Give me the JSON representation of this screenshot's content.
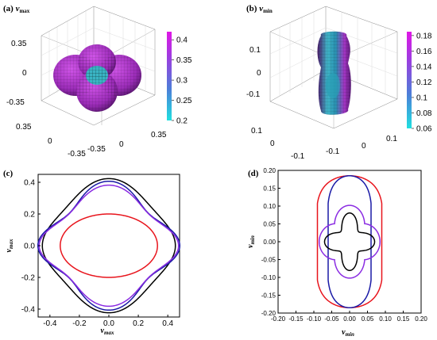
{
  "panels": {
    "a": {
      "label": "(a)",
      "var": "v",
      "sub": "max"
    },
    "b": {
      "label": "(b)",
      "var": "v",
      "sub": "min"
    },
    "c": {
      "label": "(c)"
    },
    "d": {
      "label": "(d)"
    }
  },
  "colors": {
    "black": "#000000",
    "blue": "#1a1aa6",
    "violet": "#8a2be2",
    "red": "#e8141c",
    "surfA": "#a338b8",
    "surfB": "#35c8d8"
  },
  "chart_data": [
    {
      "type": "3d-surface",
      "panel": "a",
      "title": "v max",
      "axis_ticks": {
        "vertical": [
          "0.35",
          "0",
          "-0.35"
        ],
        "front_left": [
          "0.35",
          "0",
          "-0.35"
        ],
        "front_right": [
          "-0.35",
          "0",
          "0.35"
        ]
      },
      "colorbar": {
        "ticks": [
          "0.4",
          "0.35",
          "0.3",
          "0.25",
          "0.2"
        ],
        "range": [
          0.2,
          0.42
        ],
        "colormap": "cyan-to-magenta"
      }
    },
    {
      "type": "3d-surface",
      "panel": "b",
      "title": "v min",
      "axis_ticks": {
        "vertical": [
          "0.1",
          "0",
          "-0.1"
        ],
        "front_left": [
          "0.1",
          "0",
          "-0.1"
        ],
        "front_right": [
          "-0.1",
          "0",
          "0.1"
        ]
      },
      "colorbar": {
        "ticks": [
          "0.18",
          "0.16",
          "0.14",
          "0.12",
          "0.1",
          "0.08",
          "0.06"
        ],
        "range": [
          0.06,
          0.185
        ],
        "colormap": "cyan-to-magenta"
      }
    },
    {
      "type": "line",
      "panel": "c",
      "xlabel": "v max",
      "ylabel": "v max",
      "xlim": [
        -0.48,
        0.48
      ],
      "ylim": [
        -0.45,
        0.45
      ],
      "xticks": [
        "-0.4",
        "-0.2",
        "0.0",
        "0.2",
        "0.4"
      ],
      "yticks": [
        "0.4",
        "0.2",
        "0.0",
        "-0.2",
        "-0.4"
      ],
      "series": [
        {
          "color": "#000000",
          "shape": {
            "rx": 0.43,
            "ry": 0.36,
            "a2": -0.12,
            "a4": 0.05
          }
        },
        {
          "color": "#1a1aa6",
          "shape": {
            "rx": 0.43,
            "ry": 0.33,
            "a2": -0.1,
            "a4": 0.12
          }
        },
        {
          "color": "#8a2be2",
          "shape": {
            "rx": 0.43,
            "ry": 0.31,
            "a2": -0.12,
            "a4": 0.1
          }
        },
        {
          "color": "#e8141c",
          "shape": {
            "rx": 0.33,
            "ry": 0.2,
            "a2": 0.0,
            "a4": 0.0
          }
        }
      ]
    },
    {
      "type": "line",
      "panel": "d",
      "xlabel": "v min",
      "ylabel": "v min",
      "xlim": [
        -0.2,
        0.2
      ],
      "ylim": [
        -0.2,
        0.2
      ],
      "xticks": [
        "-0.20",
        "-0.15",
        "-0.10",
        "-0.05",
        "0.00",
        "0.05",
        "0.10",
        "0.15",
        "0.20"
      ],
      "yticks": [
        "0.20",
        "0.15",
        "0.10",
        "0.05",
        "0.00",
        "-0.05",
        "-0.10",
        "-0.15",
        "-0.20"
      ],
      "series": [
        {
          "color": "#e8141c",
          "shape": {
            "kind": "peanut",
            "w": 0.09,
            "h": 0.185
          }
        },
        {
          "color": "#1a1aa6",
          "shape": {
            "kind": "peanut",
            "w": 0.06,
            "h": 0.185
          }
        },
        {
          "color": "#000000",
          "shape": {
            "kind": "star4",
            "r": 0.07
          }
        },
        {
          "color": "#8a2be2",
          "shape": {
            "kind": "lobes",
            "r": 0.085
          }
        }
      ]
    }
  ]
}
